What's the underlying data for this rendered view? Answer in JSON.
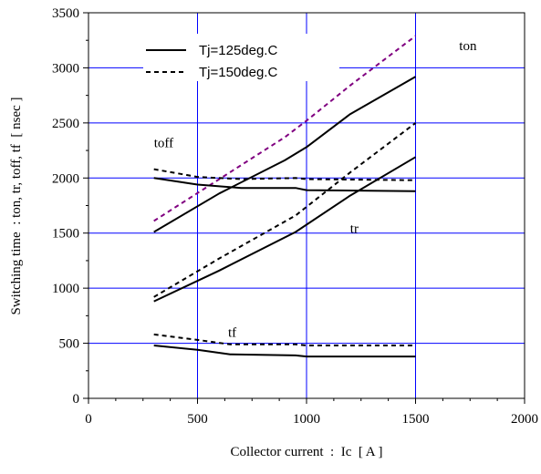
{
  "chart_data": {
    "type": "line",
    "title": "",
    "xlabel": "Collector current  :  Ic  [ A ]",
    "ylabel": "Switching time  : ton, tr, toff, tf  [ nsec ]",
    "xlim": [
      0,
      2000
    ],
    "ylim": [
      0,
      3500
    ],
    "x_ticks": [
      0,
      500,
      1000,
      1500,
      2000
    ],
    "y_ticks": [
      0,
      500,
      1000,
      1500,
      2000,
      2500,
      3000,
      3500
    ],
    "x_tick_labels": [
      "0",
      "500",
      "1000",
      "1500",
      "2000"
    ],
    "y_tick_labels": [
      "0",
      "500",
      "1000",
      "1500",
      "2000",
      "2500",
      "3000",
      "3500"
    ],
    "grid": true,
    "legend": {
      "placement": "top-left",
      "entries": [
        {
          "label": "Tj=125deg.C",
          "style": "solid"
        },
        {
          "label": "Tj=150deg.C",
          "style": "dashed"
        }
      ]
    },
    "annotations": [
      {
        "text": "ton",
        "x": 1700,
        "y": 3160
      },
      {
        "text": "toff",
        "x": 300,
        "y": 2280
      },
      {
        "text": "tr",
        "x": 1200,
        "y": 1500
      },
      {
        "text": "tf",
        "x": 640,
        "y": 560
      }
    ],
    "series": [
      {
        "group": "ton",
        "style": "solid",
        "color": "#000000",
        "x": [
          300,
          600,
          900,
          1000,
          1200,
          1500
        ],
        "y": [
          1510,
          1860,
          2160,
          2280,
          2580,
          2920
        ]
      },
      {
        "group": "ton",
        "style": "dashed",
        "color": "#800080",
        "x": [
          300,
          600,
          900,
          1000,
          1200,
          1500
        ],
        "y": [
          1610,
          1990,
          2370,
          2520,
          2840,
          3290
        ]
      },
      {
        "group": "toff",
        "style": "solid",
        "color": "#000000",
        "x": [
          300,
          500,
          700,
          950,
          1000,
          1500
        ],
        "y": [
          2000,
          1940,
          1910,
          1910,
          1890,
          1880
        ]
      },
      {
        "group": "toff",
        "style": "dashed",
        "color": "#000000",
        "x": [
          300,
          500,
          700,
          950,
          1000,
          1500
        ],
        "y": [
          2080,
          2010,
          1990,
          2000,
          1990,
          1980
        ]
      },
      {
        "group": "tr",
        "style": "solid",
        "color": "#000000",
        "x": [
          300,
          600,
          950,
          1200,
          1500
        ],
        "y": [
          880,
          1160,
          1510,
          1840,
          2190
        ]
      },
      {
        "group": "tr",
        "style": "dashed",
        "color": "#000000",
        "x": [
          300,
          600,
          950,
          1200,
          1500
        ],
        "y": [
          920,
          1270,
          1660,
          2050,
          2500
        ]
      },
      {
        "group": "tf",
        "style": "solid",
        "color": "#000000",
        "x": [
          300,
          500,
          650,
          950,
          1000,
          1500
        ],
        "y": [
          480,
          440,
          400,
          390,
          380,
          380
        ]
      },
      {
        "group": "tf",
        "style": "dashed",
        "color": "#000000",
        "x": [
          300,
          500,
          650,
          950,
          1000,
          1500
        ],
        "y": [
          580,
          530,
          490,
          490,
          480,
          480
        ]
      }
    ]
  }
}
